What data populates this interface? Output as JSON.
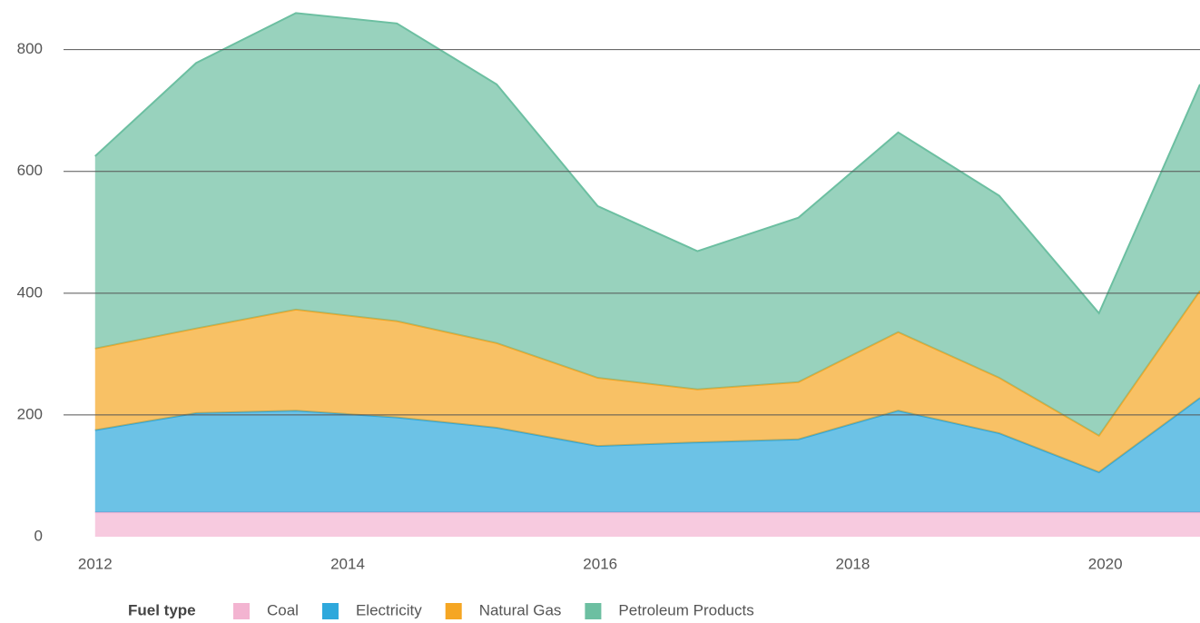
{
  "chart_data": {
    "type": "stacked_area",
    "x": [
      2012,
      2012.8,
      2013.59,
      2014.39,
      2015.18,
      2015.98,
      2016.77,
      2017.57,
      2018.36,
      2019.16,
      2019.95,
      2020.75
    ],
    "xlim": [
      2011.75,
      2020.75
    ],
    "xticks": [
      2012,
      2014,
      2016,
      2018,
      2020
    ],
    "ylim": [
      0,
      880
    ],
    "yticks": [
      0,
      200,
      400,
      600,
      800
    ],
    "grid": true,
    "legend_title": "Fuel type",
    "legend_position": "bottom",
    "series": [
      {
        "name": "Coal",
        "color": "#f3b4d1",
        "values": [
          40,
          40,
          40,
          40,
          40,
          40,
          40,
          40,
          40,
          40,
          40,
          40
        ]
      },
      {
        "name": "Electricity",
        "color": "#2ea8dc",
        "values": [
          135,
          163,
          167,
          156,
          139,
          109,
          115,
          120,
          167,
          130,
          66,
          188
        ]
      },
      {
        "name": "Natural Gas",
        "color": "#f5a623",
        "values": [
          134,
          139,
          166,
          158,
          139,
          112,
          87,
          94,
          129,
          91,
          60,
          176
        ]
      },
      {
        "name": "Petroleum Products",
        "color": "#6cbfa1",
        "values": [
          316,
          436,
          487,
          489,
          425,
          282,
          227,
          270,
          328,
          299,
          201,
          339
        ]
      }
    ]
  }
}
